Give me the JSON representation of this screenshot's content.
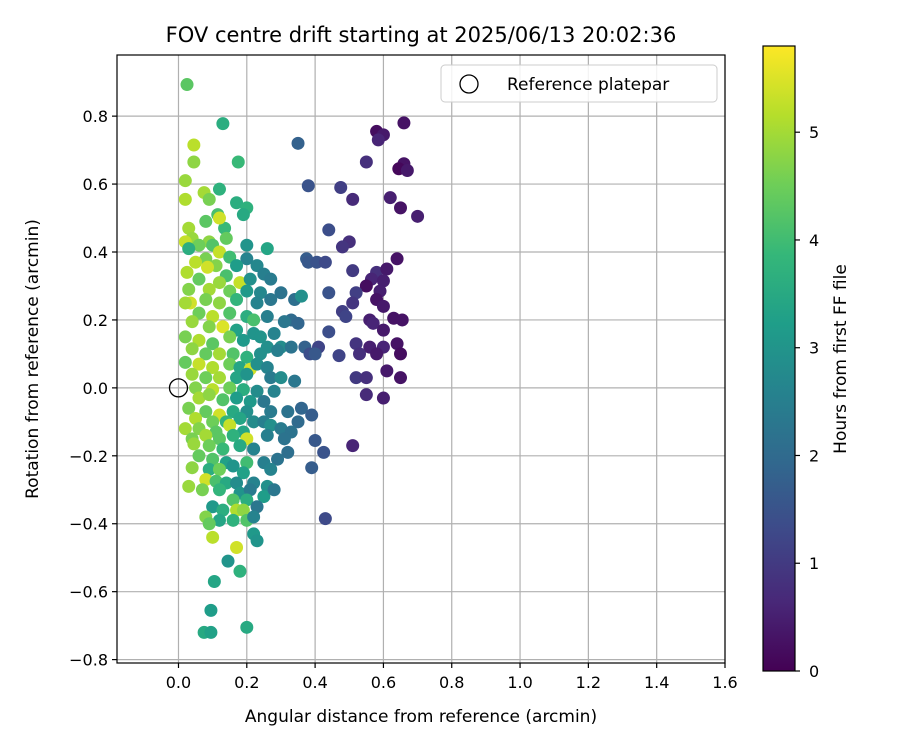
{
  "chart_data": {
    "type": "scatter",
    "title": "FOV centre drift starting at 2025/06/13 20:02:36",
    "xlabel": "Angular distance from reference (arcmin)",
    "ylabel": "Rotation from reference (arcmin)",
    "xlim": [
      -0.18,
      1.6
    ],
    "ylim": [
      -0.81,
      0.98
    ],
    "xticks": [
      0.0,
      0.2,
      0.4,
      0.6,
      0.8,
      1.0,
      1.2,
      1.4,
      1.6
    ],
    "xtick_labels": [
      "0.0",
      "0.2",
      "0.4",
      "0.6",
      "0.8",
      "1.0",
      "1.2",
      "1.4",
      "1.6"
    ],
    "yticks": [
      -0.8,
      -0.6,
      -0.4,
      -0.2,
      0.0,
      0.2,
      0.4,
      0.6,
      0.8
    ],
    "ytick_labels": [
      "−0.8",
      "−0.6",
      "−0.4",
      "−0.2",
      "0.0",
      "0.2",
      "0.4",
      "0.6",
      "0.8"
    ],
    "grid": true,
    "legend": {
      "placement": "top-right",
      "label": "Reference platepar"
    },
    "reference_point": {
      "x": 0.0,
      "y": 0.0
    },
    "colorbar": {
      "label": "Hours from first FF file",
      "range": [
        0,
        5.8
      ],
      "ticks": [
        0,
        1,
        2,
        3,
        4,
        5
      ],
      "tick_labels": [
        "0",
        "1",
        "2",
        "3",
        "4",
        "5"
      ],
      "colormap": "viridis",
      "color_stops": [
        "#440154",
        "#482878",
        "#3e4989",
        "#31688e",
        "#26828e",
        "#1f9e89",
        "#35b779",
        "#6ece58",
        "#b5de2b",
        "#fde725"
      ]
    },
    "points": [
      [
        0.025,
        0.893,
        4.3
      ],
      [
        0.13,
        0.778,
        3.6
      ],
      [
        0.045,
        0.715,
        5.2
      ],
      [
        0.35,
        0.72,
        1.8
      ],
      [
        0.045,
        0.665,
        4.8
      ],
      [
        0.175,
        0.665,
        3.9
      ],
      [
        0.02,
        0.61,
        4.9
      ],
      [
        0.075,
        0.575,
        5.0
      ],
      [
        0.12,
        0.585,
        3.7
      ],
      [
        0.09,
        0.555,
        4.6
      ],
      [
        0.17,
        0.545,
        3.6
      ],
      [
        0.2,
        0.53,
        3.7
      ],
      [
        0.02,
        0.555,
        5.1
      ],
      [
        0.115,
        0.51,
        4.1
      ],
      [
        0.19,
        0.51,
        3.5
      ],
      [
        0.135,
        0.47,
        3.9
      ],
      [
        0.03,
        0.47,
        5.0
      ],
      [
        0.08,
        0.49,
        4.3
      ],
      [
        0.12,
        0.5,
        5.4
      ],
      [
        0.04,
        0.44,
        4.9
      ],
      [
        0.09,
        0.43,
        4.8
      ],
      [
        0.14,
        0.44,
        4.4
      ],
      [
        0.02,
        0.43,
        5.3
      ],
      [
        0.06,
        0.42,
        4.5
      ],
      [
        0.1,
        0.42,
        4.2
      ],
      [
        0.2,
        0.42,
        3.0
      ],
      [
        0.26,
        0.41,
        3.4
      ],
      [
        0.03,
        0.41,
        3.6
      ],
      [
        0.12,
        0.4,
        5.3
      ],
      [
        0.08,
        0.38,
        4.6
      ],
      [
        0.15,
        0.385,
        4.0
      ],
      [
        0.2,
        0.38,
        2.6
      ],
      [
        0.05,
        0.37,
        5.2
      ],
      [
        0.11,
        0.36,
        4.7
      ],
      [
        0.17,
        0.36,
        3.2
      ],
      [
        0.23,
        0.36,
        2.7
      ],
      [
        0.025,
        0.34,
        5.1
      ],
      [
        0.085,
        0.355,
        5.4
      ],
      [
        0.14,
        0.33,
        4.1
      ],
      [
        0.25,
        0.335,
        2.5
      ],
      [
        0.06,
        0.32,
        4.4
      ],
      [
        0.12,
        0.31,
        4.9
      ],
      [
        0.18,
        0.31,
        5.3
      ],
      [
        0.21,
        0.32,
        2.9
      ],
      [
        0.27,
        0.32,
        2.4
      ],
      [
        0.03,
        0.29,
        4.7
      ],
      [
        0.09,
        0.29,
        5.0
      ],
      [
        0.15,
        0.285,
        4.5
      ],
      [
        0.2,
        0.285,
        3.1
      ],
      [
        0.24,
        0.28,
        2.7
      ],
      [
        0.3,
        0.28,
        2.2
      ],
      [
        0.035,
        0.25,
        5.4
      ],
      [
        0.08,
        0.26,
        4.6
      ],
      [
        0.12,
        0.25,
        4.8
      ],
      [
        0.17,
        0.26,
        3.8
      ],
      [
        0.23,
        0.25,
        2.6
      ],
      [
        0.27,
        0.26,
        2.3
      ],
      [
        0.34,
        0.26,
        2.1
      ],
      [
        0.36,
        0.27,
        2.9
      ],
      [
        0.02,
        0.25,
        5.0
      ],
      [
        0.06,
        0.22,
        4.5
      ],
      [
        0.1,
        0.21,
        5.2
      ],
      [
        0.15,
        0.22,
        4.2
      ],
      [
        0.2,
        0.21,
        3.6
      ],
      [
        0.22,
        0.2,
        4.1
      ],
      [
        0.26,
        0.21,
        2.5
      ],
      [
        0.33,
        0.2,
        2.0
      ],
      [
        0.35,
        0.19,
        1.9
      ],
      [
        0.31,
        0.195,
        2.3
      ],
      [
        0.04,
        0.195,
        4.9
      ],
      [
        0.09,
        0.18,
        4.7
      ],
      [
        0.13,
        0.18,
        5.5
      ],
      [
        0.17,
        0.17,
        3.3
      ],
      [
        0.22,
        0.16,
        3.0
      ],
      [
        0.28,
        0.16,
        2.6
      ],
      [
        0.02,
        0.15,
        4.6
      ],
      [
        0.06,
        0.14,
        5.1
      ],
      [
        0.1,
        0.13,
        4.3
      ],
      [
        0.15,
        0.15,
        4.6
      ],
      [
        0.19,
        0.14,
        3.1
      ],
      [
        0.24,
        0.15,
        3.0
      ],
      [
        0.26,
        0.12,
        2.9
      ],
      [
        0.3,
        0.12,
        2.8
      ],
      [
        0.33,
        0.12,
        2.2
      ],
      [
        0.37,
        0.12,
        1.8
      ],
      [
        0.04,
        0.115,
        4.8
      ],
      [
        0.08,
        0.1,
        4.4
      ],
      [
        0.12,
        0.1,
        5.0
      ],
      [
        0.16,
        0.1,
        4.2
      ],
      [
        0.2,
        0.09,
        3.7
      ],
      [
        0.24,
        0.1,
        2.9
      ],
      [
        0.29,
        0.11,
        2.5
      ],
      [
        0.02,
        0.075,
        4.4
      ],
      [
        0.06,
        0.07,
        5.3
      ],
      [
        0.1,
        0.06,
        5.1
      ],
      [
        0.15,
        0.07,
        4.5
      ],
      [
        0.18,
        0.06,
        3.4
      ],
      [
        0.21,
        0.055,
        5.4
      ],
      [
        0.23,
        0.07,
        2.9
      ],
      [
        0.26,
        0.06,
        2.6
      ],
      [
        0.04,
        0.04,
        4.9
      ],
      [
        0.08,
        0.03,
        4.5
      ],
      [
        0.12,
        0.03,
        5.0
      ],
      [
        0.17,
        0.03,
        3.4
      ],
      [
        0.2,
        0.04,
        3.0
      ],
      [
        0.27,
        0.03,
        2.4
      ],
      [
        0.3,
        0.03,
        2.8
      ],
      [
        0.34,
        0.02,
        2.3
      ],
      [
        0.05,
        0.0,
        4.7
      ],
      [
        0.1,
        -0.005,
        5.2
      ],
      [
        0.15,
        0.0,
        4.5
      ],
      [
        0.19,
        -0.005,
        3.6
      ],
      [
        0.23,
        -0.01,
        2.8
      ],
      [
        0.28,
        -0.01,
        2.6
      ],
      [
        0.06,
        -0.03,
        5.0
      ],
      [
        0.09,
        -0.02,
        4.8
      ],
      [
        0.13,
        -0.035,
        4.2
      ],
      [
        0.17,
        -0.03,
        3.2
      ],
      [
        0.21,
        -0.04,
        3.1
      ],
      [
        0.25,
        -0.04,
        2.3
      ],
      [
        0.03,
        -0.06,
        4.6
      ],
      [
        0.08,
        -0.07,
        4.4
      ],
      [
        0.12,
        -0.08,
        5.4
      ],
      [
        0.16,
        -0.07,
        3.5
      ],
      [
        0.2,
        -0.07,
        2.9
      ],
      [
        0.27,
        -0.07,
        2.4
      ],
      [
        0.32,
        -0.07,
        2.2
      ],
      [
        0.36,
        -0.06,
        1.9
      ],
      [
        0.05,
        -0.09,
        5.1
      ],
      [
        0.1,
        -0.1,
        4.5
      ],
      [
        0.14,
        -0.1,
        3.8
      ],
      [
        0.18,
        -0.09,
        3.4
      ],
      [
        0.22,
        -0.1,
        2.8
      ],
      [
        0.25,
        -0.1,
        2.5
      ],
      [
        0.35,
        -0.1,
        2.0
      ],
      [
        0.39,
        -0.08,
        1.7
      ],
      [
        0.02,
        -0.12,
        5.0
      ],
      [
        0.06,
        -0.12,
        4.7
      ],
      [
        0.11,
        -0.13,
        4.3
      ],
      [
        0.15,
        -0.11,
        5.3
      ],
      [
        0.19,
        -0.13,
        3.4
      ],
      [
        0.27,
        -0.11,
        2.9
      ],
      [
        0.3,
        -0.12,
        2.4
      ],
      [
        0.33,
        -0.13,
        2.2
      ],
      [
        0.04,
        -0.15,
        4.6
      ],
      [
        0.08,
        -0.14,
        5.0
      ],
      [
        0.12,
        -0.15,
        4.3
      ],
      [
        0.16,
        -0.14,
        3.7
      ],
      [
        0.2,
        -0.15,
        5.4
      ],
      [
        0.26,
        -0.14,
        2.5
      ],
      [
        0.31,
        -0.15,
        2.2
      ],
      [
        0.4,
        -0.155,
        1.6
      ],
      [
        0.045,
        -0.165,
        4.9
      ],
      [
        0.09,
        -0.17,
        4.5
      ],
      [
        0.13,
        -0.18,
        3.9
      ],
      [
        0.18,
        -0.17,
        3.5
      ],
      [
        0.22,
        -0.18,
        2.6
      ],
      [
        0.32,
        -0.19,
        2.1
      ],
      [
        0.425,
        -0.19,
        1.5
      ],
      [
        0.51,
        -0.17,
        0.6
      ],
      [
        0.06,
        -0.2,
        4.4
      ],
      [
        0.1,
        -0.21,
        4.2
      ],
      [
        0.14,
        -0.22,
        3.3
      ],
      [
        0.2,
        -0.22,
        4.0
      ],
      [
        0.25,
        -0.22,
        2.5
      ],
      [
        0.29,
        -0.21,
        2.2
      ],
      [
        0.04,
        -0.235,
        4.8
      ],
      [
        0.09,
        -0.24,
        3.6
      ],
      [
        0.12,
        -0.24,
        4.5
      ],
      [
        0.16,
        -0.23,
        3.0
      ],
      [
        0.19,
        -0.25,
        3.3
      ],
      [
        0.27,
        -0.24,
        2.6
      ],
      [
        0.39,
        -0.235,
        1.7
      ],
      [
        0.08,
        -0.27,
        5.4
      ],
      [
        0.11,
        -0.275,
        4.1
      ],
      [
        0.14,
        -0.28,
        3.5
      ],
      [
        0.17,
        -0.28,
        2.8
      ],
      [
        0.22,
        -0.28,
        2.6
      ],
      [
        0.26,
        -0.29,
        2.9
      ],
      [
        0.03,
        -0.29,
        4.9
      ],
      [
        0.07,
        -0.3,
        4.6
      ],
      [
        0.12,
        -0.3,
        3.8
      ],
      [
        0.18,
        -0.31,
        3.0
      ],
      [
        0.21,
        -0.3,
        2.4
      ],
      [
        0.25,
        -0.32,
        3.2
      ],
      [
        0.28,
        -0.3,
        2.3
      ],
      [
        0.16,
        -0.33,
        4.2
      ],
      [
        0.2,
        -0.33,
        3.6
      ],
      [
        0.23,
        -0.35,
        2.3
      ],
      [
        0.1,
        -0.35,
        3.1
      ],
      [
        0.13,
        -0.36,
        3.6
      ],
      [
        0.17,
        -0.36,
        5.1
      ],
      [
        0.19,
        -0.36,
        4.8
      ],
      [
        0.08,
        -0.38,
        4.7
      ],
      [
        0.12,
        -0.39,
        3.4
      ],
      [
        0.16,
        -0.39,
        3.7
      ],
      [
        0.2,
        -0.39,
        4.2
      ],
      [
        0.22,
        -0.38,
        2.6
      ],
      [
        0.09,
        -0.4,
        4.4
      ],
      [
        0.43,
        -0.385,
        1.3
      ],
      [
        0.22,
        -0.43,
        3.1
      ],
      [
        0.1,
        -0.44,
        5.2
      ],
      [
        0.23,
        -0.45,
        3.0
      ],
      [
        0.17,
        -0.47,
        5.4
      ],
      [
        0.145,
        -0.51,
        3.0
      ],
      [
        0.18,
        -0.54,
        3.7
      ],
      [
        0.105,
        -0.57,
        3.4
      ],
      [
        0.095,
        -0.655,
        3.2
      ],
      [
        0.2,
        -0.705,
        3.5
      ],
      [
        0.075,
        -0.72,
        3.5
      ],
      [
        0.095,
        -0.72,
        3.3
      ],
      [
        0.66,
        0.78,
        0.3
      ],
      [
        0.58,
        0.755,
        0.2
      ],
      [
        0.6,
        0.745,
        0.4
      ],
      [
        0.585,
        0.73,
        0.6
      ],
      [
        0.66,
        0.66,
        0.3
      ],
      [
        0.55,
        0.665,
        0.8
      ],
      [
        0.645,
        0.645,
        0.1
      ],
      [
        0.67,
        0.64,
        0.4
      ],
      [
        0.38,
        0.595,
        1.5
      ],
      [
        0.475,
        0.59,
        1.1
      ],
      [
        0.62,
        0.56,
        0.5
      ],
      [
        0.51,
        0.555,
        0.7
      ],
      [
        0.65,
        0.53,
        0.3
      ],
      [
        0.7,
        0.505,
        0.5
      ],
      [
        0.44,
        0.465,
        1.4
      ],
      [
        0.5,
        0.43,
        0.8
      ],
      [
        0.48,
        0.415,
        0.9
      ],
      [
        0.375,
        0.38,
        1.7
      ],
      [
        0.38,
        0.37,
        1.6
      ],
      [
        0.405,
        0.37,
        1.5
      ],
      [
        0.43,
        0.37,
        1.3
      ],
      [
        0.64,
        0.38,
        0.3
      ],
      [
        0.51,
        0.345,
        1.0
      ],
      [
        0.58,
        0.34,
        0.8
      ],
      [
        0.61,
        0.35,
        0.4
      ],
      [
        0.565,
        0.32,
        0.6
      ],
      [
        0.6,
        0.315,
        0.5
      ],
      [
        0.55,
        0.3,
        0.2
      ],
      [
        0.44,
        0.28,
        1.5
      ],
      [
        0.52,
        0.28,
        1.1
      ],
      [
        0.59,
        0.285,
        0.5
      ],
      [
        0.58,
        0.26,
        0.3
      ],
      [
        0.51,
        0.25,
        0.9
      ],
      [
        0.6,
        0.24,
        0.4
      ],
      [
        0.48,
        0.225,
        1.1
      ],
      [
        0.49,
        0.21,
        1.2
      ],
      [
        0.56,
        0.2,
        0.5
      ],
      [
        0.63,
        0.205,
        0.3
      ],
      [
        0.655,
        0.2,
        0.3
      ],
      [
        0.57,
        0.19,
        0.6
      ],
      [
        0.44,
        0.165,
        1.4
      ],
      [
        0.6,
        0.17,
        0.4
      ],
      [
        0.41,
        0.12,
        1.2
      ],
      [
        0.52,
        0.13,
        0.9
      ],
      [
        0.56,
        0.12,
        0.5
      ],
      [
        0.6,
        0.12,
        0.6
      ],
      [
        0.64,
        0.13,
        0.3
      ],
      [
        0.385,
        0.1,
        1.4
      ],
      [
        0.4,
        0.1,
        1.6
      ],
      [
        0.47,
        0.095,
        1.2
      ],
      [
        0.53,
        0.1,
        0.8
      ],
      [
        0.58,
        0.1,
        0.4
      ],
      [
        0.65,
        0.1,
        0.2
      ],
      [
        0.61,
        0.05,
        0.4
      ],
      [
        0.52,
        0.03,
        1.0
      ],
      [
        0.55,
        0.03,
        0.8
      ],
      [
        0.65,
        0.03,
        0.3
      ],
      [
        0.55,
        -0.02,
        0.7
      ],
      [
        0.6,
        -0.03,
        0.5
      ]
    ]
  }
}
